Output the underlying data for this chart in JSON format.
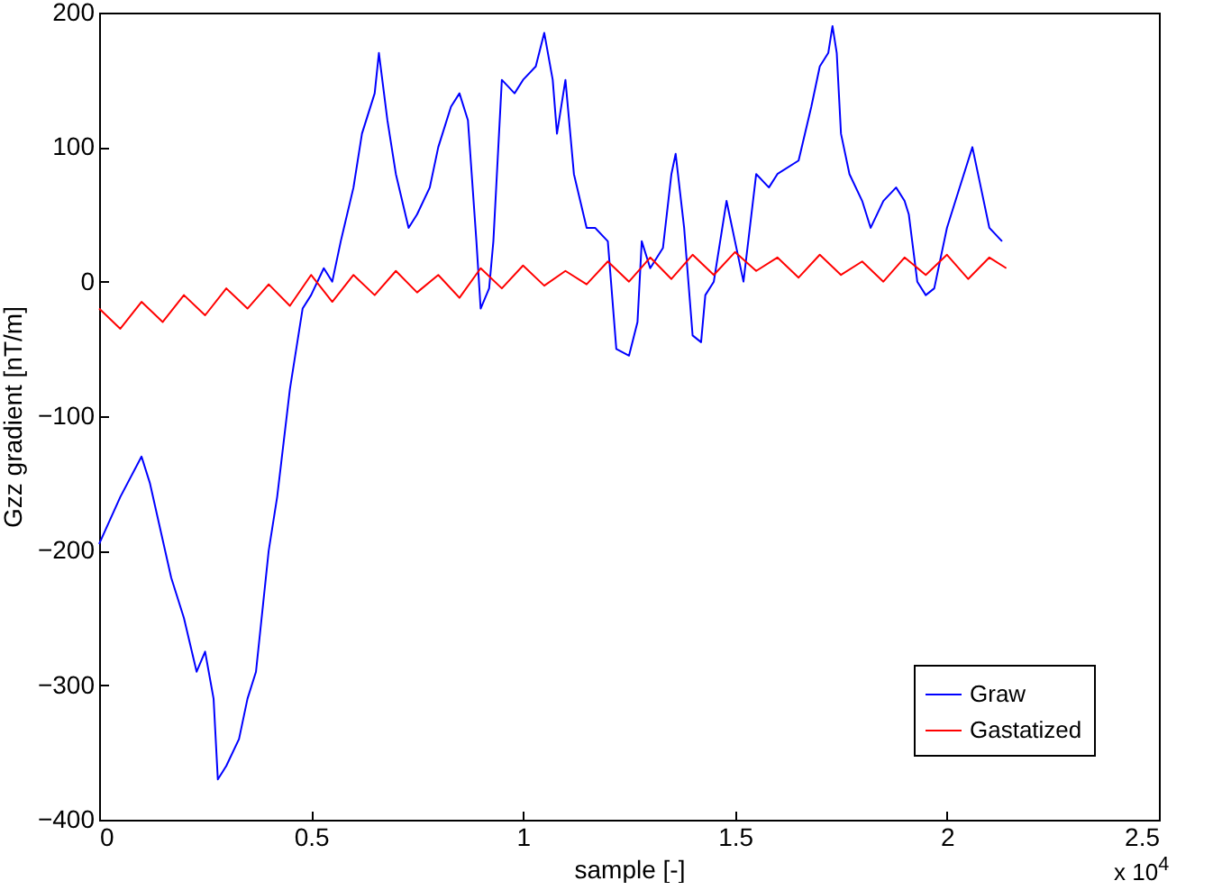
{
  "chart_data": {
    "type": "line",
    "xlabel": "sample [-]",
    "ylabel": "Gzz gradient [nT/m]",
    "annotations": [
      "x 10$^{4}$"
    ],
    "xlim": [
      0,
      2.5
    ],
    "xticks": [
      0,
      0.5,
      1,
      1.5,
      2,
      2.5
    ],
    "ylim": [
      -400,
      200
    ],
    "yticks": [
      -400,
      -300,
      -200,
      -100,
      0,
      100,
      200
    ],
    "grid": false,
    "legend": "bottom right",
    "marker": "none",
    "line_style": "solid",
    "series": [
      {
        "name": "Graw",
        "color": "#0000ff",
        "x": [
          0,
          0.05,
          0.1,
          0.12,
          0.17,
          0.2,
          0.23,
          0.25,
          0.27,
          0.28,
          0.3,
          0.33,
          0.35,
          0.37,
          0.4,
          0.42,
          0.45,
          0.48,
          0.5,
          0.53,
          0.55,
          0.57,
          0.6,
          0.62,
          0.65,
          0.66,
          0.68,
          0.7,
          0.73,
          0.75,
          0.78,
          0.8,
          0.83,
          0.85,
          0.87,
          0.89,
          0.9,
          0.92,
          0.93,
          0.95,
          0.98,
          1.0,
          1.03,
          1.05,
          1.07,
          1.08,
          1.1,
          1.12,
          1.15,
          1.17,
          1.2,
          1.22,
          1.25,
          1.27,
          1.28,
          1.3,
          1.33,
          1.35,
          1.36,
          1.38,
          1.4,
          1.42,
          1.43,
          1.45,
          1.48,
          1.5,
          1.52,
          1.55,
          1.58,
          1.6,
          1.65,
          1.68,
          1.7,
          1.72,
          1.73,
          1.74,
          1.75,
          1.77,
          1.8,
          1.82,
          1.85,
          1.88,
          1.9,
          1.91,
          1.93,
          1.95,
          1.97,
          2.0,
          2.02,
          2.05,
          2.06,
          2.08,
          2.1,
          2.13
        ],
        "values": [
          -195,
          -160,
          -130,
          -150,
          -220,
          -250,
          -290,
          -275,
          -310,
          -370,
          -360,
          -340,
          -310,
          -290,
          -200,
          -160,
          -80,
          -20,
          -10,
          10,
          0,
          30,
          70,
          110,
          140,
          170,
          120,
          80,
          40,
          50,
          70,
          100,
          130,
          140,
          120,
          30,
          -20,
          -5,
          30,
          150,
          140,
          150,
          160,
          185,
          150,
          110,
          150,
          80,
          40,
          40,
          30,
          -50,
          -55,
          -30,
          30,
          10,
          25,
          80,
          95,
          40,
          -40,
          -45,
          -10,
          0,
          60,
          30,
          0,
          80,
          70,
          80,
          90,
          130,
          160,
          170,
          190,
          170,
          110,
          80,
          60,
          40,
          60,
          70,
          60,
          50,
          0,
          -10,
          -5,
          40,
          60,
          90,
          100,
          70,
          40,
          30
        ]
      },
      {
        "name": "Gastatized",
        "color": "#ff0000",
        "x": [
          0,
          0.05,
          0.1,
          0.15,
          0.2,
          0.25,
          0.3,
          0.35,
          0.4,
          0.45,
          0.5,
          0.55,
          0.6,
          0.65,
          0.7,
          0.75,
          0.8,
          0.85,
          0.9,
          0.95,
          1.0,
          1.05,
          1.1,
          1.15,
          1.2,
          1.25,
          1.3,
          1.35,
          1.4,
          1.45,
          1.5,
          1.55,
          1.6,
          1.65,
          1.7,
          1.75,
          1.8,
          1.85,
          1.9,
          1.95,
          2.0,
          2.05,
          2.1,
          2.14
        ],
        "values": [
          -20,
          -35,
          -15,
          -30,
          -10,
          -25,
          -5,
          -20,
          -2,
          -18,
          5,
          -15,
          5,
          -10,
          8,
          -8,
          5,
          -12,
          10,
          -5,
          12,
          -3,
          8,
          -2,
          15,
          0,
          18,
          2,
          20,
          5,
          22,
          8,
          18,
          3,
          20,
          5,
          15,
          0,
          18,
          5,
          20,
          2,
          18,
          10
        ]
      }
    ]
  }
}
